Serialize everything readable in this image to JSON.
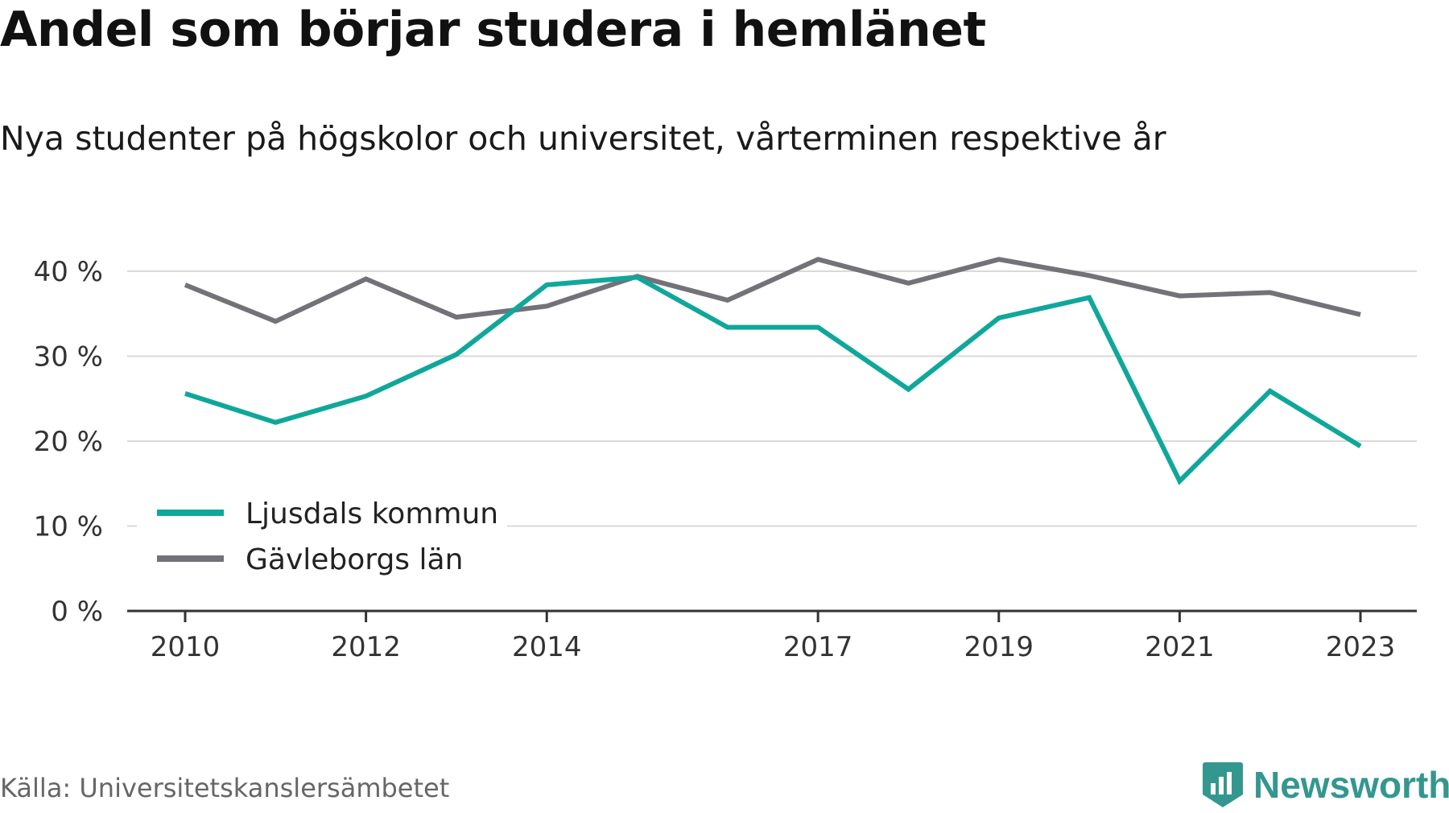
{
  "title": "Andel som börjar studera i hemlänet",
  "subtitle": "Nya studenter på högskolor och universitet, vårterminen respektive år",
  "source": "Källa: Universitetskanslersämbetet",
  "brand": {
    "name": "Newsworthy",
    "icon": "newsworthy-logo-icon",
    "color": "#34978f"
  },
  "chart_data": {
    "type": "line",
    "x": [
      2010,
      2011,
      2012,
      2013,
      2014,
      2015,
      2016,
      2017,
      2018,
      2019,
      2020,
      2021,
      2022,
      2023
    ],
    "x_tick_labels": [
      "2010",
      "2012",
      "2014",
      "2017",
      "2019",
      "2021",
      "2023"
    ],
    "y_ticks": [
      0,
      10,
      20,
      30,
      40
    ],
    "y_tick_labels": [
      "0 %",
      "10 %",
      "20 %",
      "30 %",
      "40 %"
    ],
    "ylim": [
      0,
      43
    ],
    "grid": true,
    "legend_position": "bottom-left",
    "series": [
      {
        "name": "Ljusdals kommun",
        "color": "#10a79b",
        "values": [
          25.6,
          22.2,
          25.3,
          30.2,
          38.4,
          39.3,
          33.4,
          33.4,
          26.1,
          34.5,
          36.9,
          15.3,
          25.9,
          19.4
        ]
      },
      {
        "name": "Gävleborgs län",
        "color": "#737278",
        "values": [
          38.4,
          34.1,
          39.1,
          34.6,
          35.9,
          39.4,
          36.6,
          41.4,
          38.6,
          41.4,
          39.5,
          37.1,
          37.5,
          34.9
        ]
      }
    ]
  }
}
